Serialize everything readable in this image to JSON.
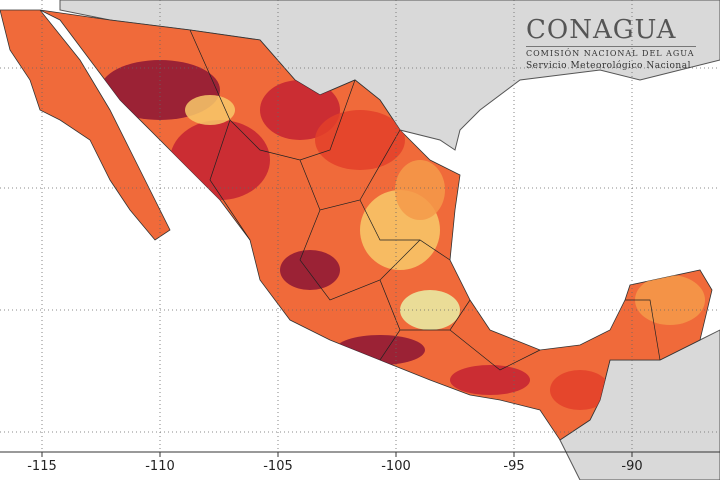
{
  "logo": {
    "title": "CONAGUA",
    "subtitle": "COMISIÓN NACIONAL DEL AGUA",
    "service": "Servicio Meteorológico Nacional"
  },
  "map": {
    "lon_range": [
      -116,
      -86
    ],
    "lat_range": [
      12,
      33.5
    ],
    "gridlines": true,
    "lon_ticks": [
      "-115",
      "-110",
      "-105",
      "-100",
      "-95",
      "-90"
    ],
    "colors": {
      "ocean": "#ffffff",
      "land_other": "#d9d9d9",
      "grid": "#666666",
      "hot_1": "#f06a3a",
      "hot_2": "#e3402a",
      "hot_3": "#c42232",
      "hot_4": "#8c1535",
      "warm": "#f59a4a",
      "mild": "#f8c96a",
      "cool": "#e9f0a8"
    }
  }
}
